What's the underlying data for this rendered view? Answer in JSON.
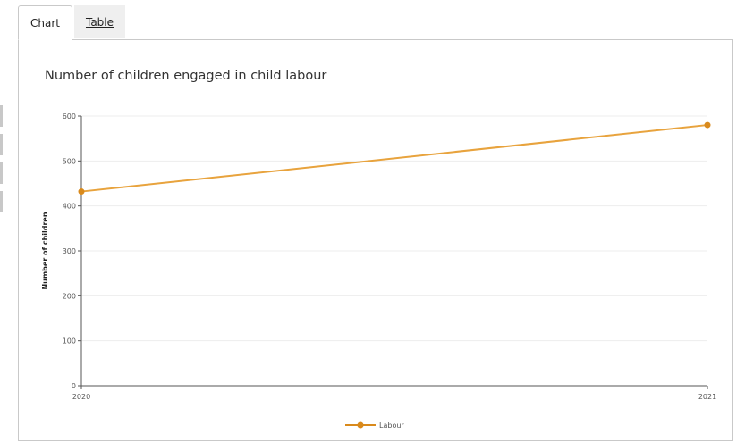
{
  "tabs": [
    {
      "label": "Chart",
      "active": true
    },
    {
      "label": "Table",
      "active": false
    }
  ],
  "colors": {
    "series": "#e8a33d",
    "marker": "#d98a1c",
    "axis": "#555555",
    "grid": "#ededed"
  },
  "chart_data": {
    "type": "line",
    "title": "Number of children engaged in child labour",
    "xlabel": "",
    "ylabel": "Number of children",
    "x": [
      "2020",
      "2021"
    ],
    "ylim": [
      0,
      600
    ],
    "yticks": [
      0,
      100,
      200,
      300,
      400,
      500,
      600
    ],
    "grid": true,
    "legend_position": "bottom",
    "series": [
      {
        "name": "Labour",
        "values": [
          432,
          580
        ]
      }
    ]
  }
}
